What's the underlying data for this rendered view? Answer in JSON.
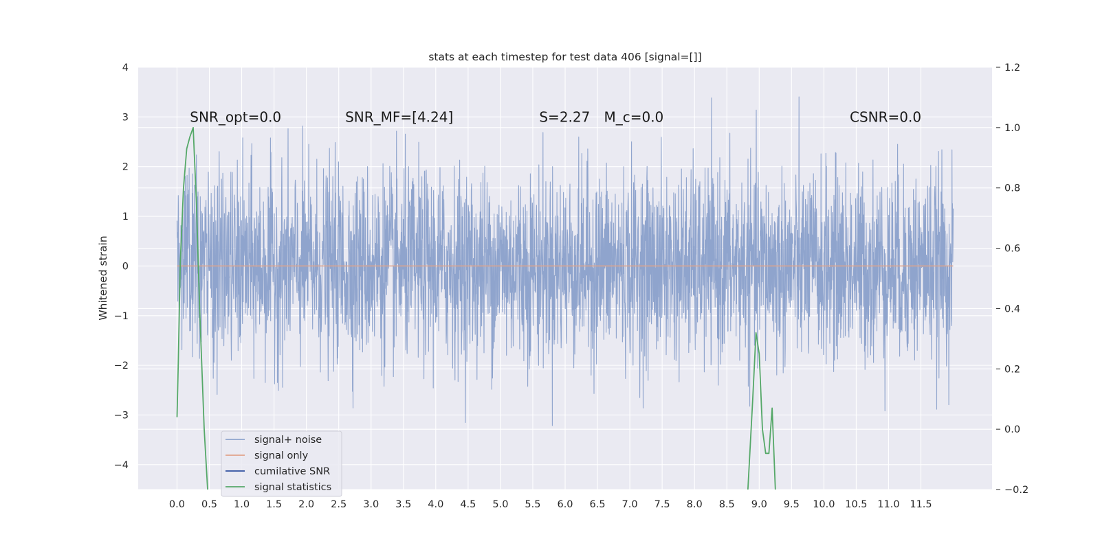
{
  "chart_data": {
    "type": "line",
    "title": "stats at each timestep for test data 406 [signal=[]]",
    "xlabel": "",
    "ylabel": "Whitened strain",
    "y2label": "",
    "xlim": [
      -0.6,
      12.6
    ],
    "ylim": [
      -4.5,
      4.0
    ],
    "y2lim": [
      -0.2,
      1.2
    ],
    "xticks": [
      "0.0",
      "0.5",
      "1.0",
      "1.5",
      "2.0",
      "2.5",
      "3.0",
      "3.5",
      "4.0",
      "4.5",
      "5.0",
      "5.5",
      "6.0",
      "6.5",
      "7.0",
      "7.5",
      "8.0",
      "8.5",
      "9.0",
      "9.5",
      "10.0",
      "10.5",
      "11.0",
      "11.5"
    ],
    "yticks": [
      "4",
      "3",
      "2",
      "1",
      "0",
      "−1",
      "−2",
      "−3",
      "−4"
    ],
    "y2ticks": [
      "1.2",
      "1.0",
      "0.8",
      "0.6",
      "0.4",
      "0.2",
      "0.0",
      "−0.2"
    ],
    "grid": true,
    "legend_position": "lower-left",
    "annotations": [
      {
        "text": "SNR_opt=0.0",
        "x": 0.2,
        "y": 2.9
      },
      {
        "text": "SNR_MF=[4.24]",
        "x": 2.6,
        "y": 2.9
      },
      {
        "text": "S=2.27",
        "x": 5.6,
        "y": 2.9
      },
      {
        "text": "M_c=0.0",
        "x": 6.6,
        "y": 2.9
      },
      {
        "text": "CSNR=0.0",
        "x": 10.4,
        "y": 2.9
      }
    ],
    "series": [
      {
        "name": "signal+ noise",
        "color": "#8fa4cd",
        "axis": "left",
        "x_range": [
          0.0,
          12.0
        ],
        "y_typical_range": [
          -2.0,
          2.0
        ],
        "y_extremes": [
          -4.1,
          3.65
        ]
      },
      {
        "name": "signal only",
        "color": "#e0a38a",
        "axis": "left",
        "x": [
          0.0,
          12.0
        ],
        "y": [
          0.0,
          0.0
        ]
      },
      {
        "name": "cumilative SNR",
        "color": "#2f4fa0",
        "axis": "right",
        "x": [],
        "y": []
      },
      {
        "name": "signal statistics",
        "color": "#55a868",
        "axis": "right",
        "x": [
          0.0,
          0.02,
          0.05,
          0.1,
          0.15,
          0.2,
          0.25,
          0.3,
          0.35,
          0.42,
          0.5,
          8.8,
          8.9,
          8.95,
          9.0,
          9.05,
          9.1,
          9.15,
          9.2,
          9.25,
          9.3
        ],
        "y": [
          0.04,
          0.22,
          0.55,
          0.8,
          0.93,
          0.97,
          1.0,
          0.75,
          0.4,
          0.0,
          -0.3,
          -0.3,
          0.1,
          0.32,
          0.25,
          0.0,
          -0.08,
          -0.08,
          0.07,
          -0.2,
          -0.3
        ]
      }
    ]
  }
}
